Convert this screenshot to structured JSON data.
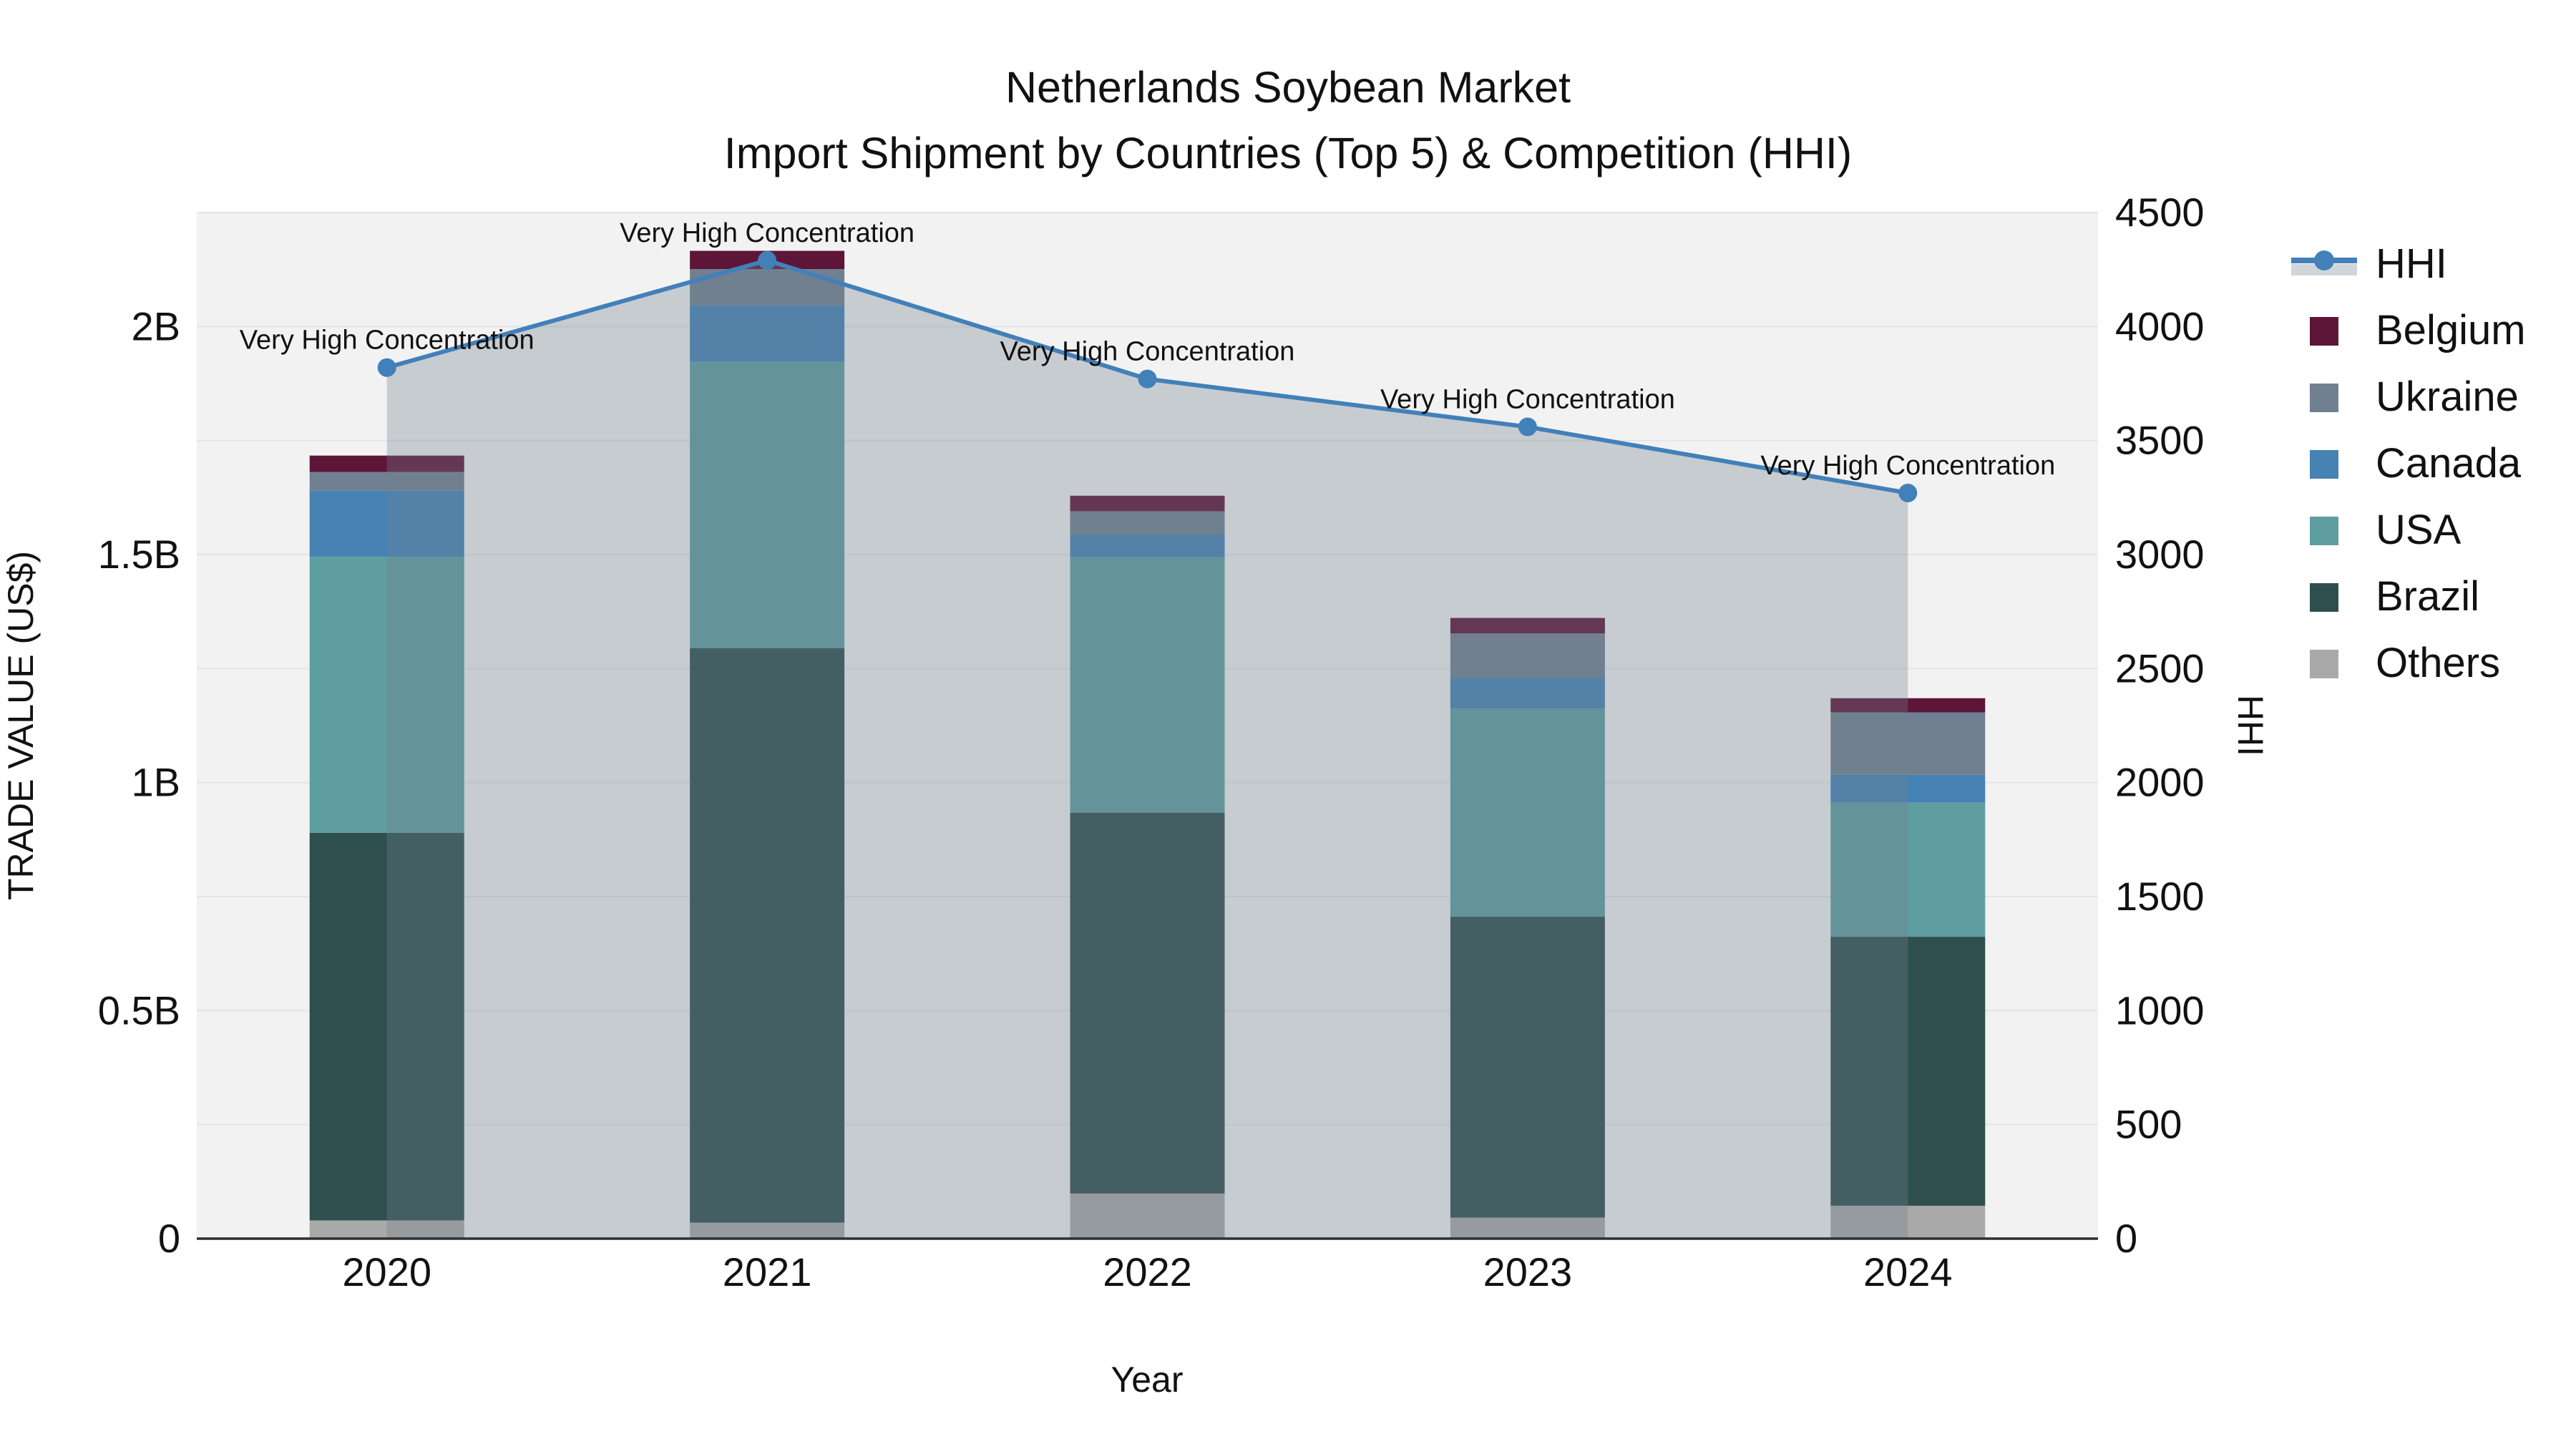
{
  "title": {
    "line1": "Netherlands Soybean Market",
    "line2": "Import Shipment by Countries (Top 5) & Competition (HHI)"
  },
  "axes": {
    "x": {
      "label": "Year"
    },
    "y_left": {
      "label": "TRADE VALUE (US$)",
      "ticks": [
        {
          "label": "0",
          "value": 0
        },
        {
          "label": "0.5B",
          "value": 0.5
        },
        {
          "label": "1B",
          "value": 1
        },
        {
          "label": "1.5B",
          "value": 1.5
        },
        {
          "label": "2B",
          "value": 2
        }
      ]
    },
    "y_right": {
      "label": "HHI",
      "tick_values": [
        0,
        500,
        1000,
        1500,
        2000,
        2500,
        3000,
        3500,
        4000,
        4500
      ]
    }
  },
  "legend": {
    "items": [
      {
        "name": "HHI",
        "type": "line",
        "color_key": "hhi"
      },
      {
        "name": "Belgium",
        "type": "swatch",
        "color_key": "belgium"
      },
      {
        "name": "Ukraine",
        "type": "swatch",
        "color_key": "ukraine"
      },
      {
        "name": "Canada",
        "type": "swatch",
        "color_key": "canada"
      },
      {
        "name": "USA",
        "type": "swatch",
        "color_key": "usa"
      },
      {
        "name": "Brazil",
        "type": "swatch",
        "color_key": "brazil"
      },
      {
        "name": "Others",
        "type": "swatch",
        "color_key": "others"
      }
    ]
  },
  "colors": {
    "belgium": "#5e1638",
    "ukraine": "#708090",
    "canada": "#4682b4",
    "usa": "#5f9ea0",
    "brazil": "#2f4f4f",
    "others": "#a9a9a9",
    "hhi": "#4280b9",
    "hhi_area_fill": "rgba(112,128,144,0.33)",
    "plot_background": "#f2f2f2",
    "gridline": "#e4e4e8",
    "axis_line": "#2f2f2f"
  },
  "chart_data": {
    "type": "bar",
    "subtype": "stacked-bars-with-line-on-secondary-axis",
    "title": "Netherlands Soybean Market — Import Shipment by Countries (Top 5) & Competition (HHI)",
    "categories": [
      "2020",
      "2021",
      "2022",
      "2023",
      "2024"
    ],
    "xlabel": "Year",
    "ylabel_left": "TRADE VALUE (US$)",
    "ylabel_right": "HHI",
    "ylim_left_billion_usd": [
      0,
      2.25
    ],
    "ylim_right": [
      0,
      4500
    ],
    "grid": "horizontal, every 500 HHI (0.25B)",
    "legend_position": "right",
    "stack_order_bottom_to_top": [
      "Others",
      "Brazil",
      "USA",
      "Canada",
      "Ukraine",
      "Belgium"
    ],
    "series": [
      {
        "name": "Others",
        "color_key": "others",
        "values_billion_usd": [
          0.04,
          0.035,
          0.099,
          0.046,
          0.072
        ]
      },
      {
        "name": "Brazil",
        "color_key": "brazil",
        "values_billion_usd": [
          0.85,
          1.26,
          0.835,
          0.66,
          0.59
        ]
      },
      {
        "name": "USA",
        "color_key": "usa",
        "values_billion_usd": [
          0.605,
          0.628,
          0.56,
          0.456,
          0.294
        ]
      },
      {
        "name": "Canada",
        "color_key": "canada",
        "values_billion_usd": [
          0.145,
          0.124,
          0.05,
          0.069,
          0.061
        ]
      },
      {
        "name": "Ukraine",
        "color_key": "ukraine",
        "values_billion_usd": [
          0.041,
          0.079,
          0.051,
          0.096,
          0.137
        ]
      },
      {
        "name": "Belgium",
        "color_key": "belgium",
        "values_billion_usd": [
          0.036,
          0.04,
          0.034,
          0.034,
          0.031
        ]
      }
    ],
    "bar_totals_billion_usd": [
      1.717,
      2.166,
      1.629,
      1.361,
      1.185
    ],
    "hhi": {
      "name": "HHI",
      "axis": "right",
      "style": "line with circular markers and area fill to zero",
      "values": [
        3820,
        4290,
        3770,
        3560,
        3270
      ],
      "annotations": [
        "Very High Concentration",
        "Very High Concentration",
        "Very High Concentration",
        "Very High Concentration",
        "Very High Concentration"
      ]
    }
  }
}
